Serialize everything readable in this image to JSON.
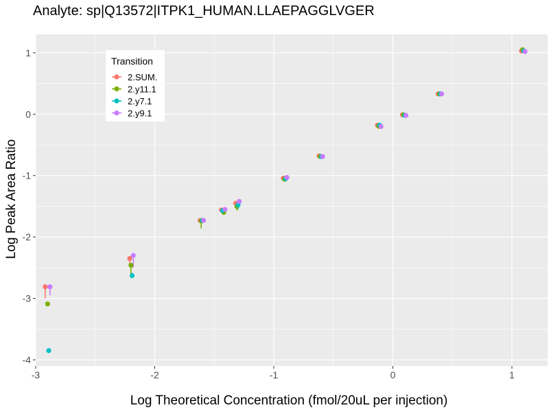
{
  "chart_data": {
    "type": "scatter",
    "title": "Analyte: sp|Q13572|ITPK1_HUMAN.LLAEPAGGLVGER",
    "xlabel": "Log Theoretical Concentration (fmol/20uL per injection)",
    "ylabel": "Log Peak Area Ratio",
    "xlim": [
      -3.0,
      1.3
    ],
    "ylim": [
      -4.1,
      1.3
    ],
    "x_ticks": [
      -3,
      -2,
      -1,
      0,
      1
    ],
    "x_tick_labels": [
      "-3",
      "-2",
      "-1",
      "0",
      "1"
    ],
    "y_ticks": [
      1,
      0,
      -1,
      -2,
      -3,
      -4
    ],
    "y_tick_labels": [
      "1",
      "0",
      "-1",
      "-2",
      "-3",
      "-4"
    ],
    "grid": true,
    "background": "#ebebeb",
    "legend": {
      "title": "Transition",
      "position": "top-left"
    },
    "series": [
      {
        "name": "2.SUM.",
        "color": "#F8766D",
        "points": [
          {
            "x": -2.92,
            "y": -2.81,
            "ymin": -3.0,
            "ymax": -2.81
          },
          {
            "x": -2.21,
            "y": -2.35,
            "ymin": -2.45,
            "ymax": -2.32
          },
          {
            "x": -1.62,
            "y": -1.73,
            "ymin": -1.73,
            "ymax": -1.72
          },
          {
            "x": -1.44,
            "y": -1.56,
            "ymin": -1.58,
            "ymax": -1.55
          },
          {
            "x": -1.32,
            "y": -1.45,
            "ymin": -1.5,
            "ymax": -1.44
          },
          {
            "x": -0.92,
            "y": -1.04,
            "ymin": -1.05,
            "ymax": -1.04
          },
          {
            "x": -0.62,
            "y": -0.68,
            "ymin": -0.69,
            "ymax": -0.67
          },
          {
            "x": -0.13,
            "y": -0.18,
            "ymin": -0.23,
            "ymax": -0.16
          },
          {
            "x": 0.08,
            "y": -0.01,
            "ymin": -0.02,
            "ymax": 0.0
          },
          {
            "x": 0.38,
            "y": 0.33,
            "ymin": 0.32,
            "ymax": 0.34
          },
          {
            "x": 1.08,
            "y": 1.03,
            "ymin": 1.01,
            "ymax": 1.06
          }
        ]
      },
      {
        "name": "2.y11.1",
        "color": "#7CAE00",
        "points": [
          {
            "x": -2.9,
            "y": -3.09,
            "ymin": -3.09,
            "ymax": -3.09
          },
          {
            "x": -2.2,
            "y": -2.46,
            "ymin": -2.6,
            "ymax": -2.42
          },
          {
            "x": -1.61,
            "y": -1.74,
            "ymin": -1.86,
            "ymax": -1.72
          },
          {
            "x": -1.42,
            "y": -1.6,
            "ymin": -1.62,
            "ymax": -1.57
          },
          {
            "x": -1.31,
            "y": -1.5,
            "ymin": -1.57,
            "ymax": -1.47
          },
          {
            "x": -0.91,
            "y": -1.06,
            "ymin": -1.07,
            "ymax": -1.05
          },
          {
            "x": -0.61,
            "y": -0.69,
            "ymin": -0.7,
            "ymax": -0.65
          },
          {
            "x": -0.12,
            "y": -0.19,
            "ymin": -0.24,
            "ymax": -0.16
          },
          {
            "x": 0.09,
            "y": -0.01,
            "ymin": -0.03,
            "ymax": 0.01
          },
          {
            "x": 0.39,
            "y": 0.33,
            "ymin": 0.32,
            "ymax": 0.34
          },
          {
            "x": 1.09,
            "y": 1.05,
            "ymin": 1.02,
            "ymax": 1.07
          }
        ]
      },
      {
        "name": "2.y7.1",
        "color": "#00BFC4",
        "points": [
          {
            "x": -2.89,
            "y": -3.85,
            "ymin": -3.85,
            "ymax": -3.85
          },
          {
            "x": -2.19,
            "y": -2.63,
            "ymin": -2.65,
            "ymax": -2.58
          },
          {
            "x": -1.6,
            "y": -1.73,
            "ymin": -1.76,
            "ymax": -1.71
          },
          {
            "x": -1.43,
            "y": -1.57,
            "ymin": -1.6,
            "ymax": -1.55
          },
          {
            "x": -1.3,
            "y": -1.48,
            "ymin": -1.55,
            "ymax": -1.46
          },
          {
            "x": -0.9,
            "y": -1.05,
            "ymin": -1.06,
            "ymax": -1.04
          },
          {
            "x": -0.6,
            "y": -0.69,
            "ymin": -0.71,
            "ymax": -0.67
          },
          {
            "x": -0.11,
            "y": -0.18,
            "ymin": -0.22,
            "ymax": -0.16
          },
          {
            "x": 0.1,
            "y": -0.02,
            "ymin": -0.04,
            "ymax": 0.0
          },
          {
            "x": 0.4,
            "y": 0.33,
            "ymin": 0.31,
            "ymax": 0.34
          },
          {
            "x": 1.1,
            "y": 1.03,
            "ymin": 1.0,
            "ymax": 1.08
          }
        ]
      },
      {
        "name": "2.y9.1",
        "color": "#C77CFF",
        "points": [
          {
            "x": -2.88,
            "y": -2.81,
            "ymin": -2.95,
            "ymax": -2.81
          },
          {
            "x": -2.18,
            "y": -2.3,
            "ymin": -2.5,
            "ymax": -2.28
          },
          {
            "x": -1.59,
            "y": -1.73,
            "ymin": -1.77,
            "ymax": -1.71
          },
          {
            "x": -1.41,
            "y": -1.55,
            "ymin": -1.6,
            "ymax": -1.52
          },
          {
            "x": -1.29,
            "y": -1.42,
            "ymin": -1.48,
            "ymax": -1.4
          },
          {
            "x": -0.89,
            "y": -1.03,
            "ymin": -1.05,
            "ymax": -1.02
          },
          {
            "x": -0.59,
            "y": -0.69,
            "ymin": -0.71,
            "ymax": -0.67
          },
          {
            "x": -0.1,
            "y": -0.2,
            "ymin": -0.24,
            "ymax": -0.17
          },
          {
            "x": 0.11,
            "y": -0.02,
            "ymin": -0.04,
            "ymax": 0.0
          },
          {
            "x": 0.41,
            "y": 0.33,
            "ymin": 0.32,
            "ymax": 0.34
          },
          {
            "x": 1.11,
            "y": 1.02,
            "ymin": 1.0,
            "ymax": 1.05
          }
        ]
      }
    ]
  }
}
